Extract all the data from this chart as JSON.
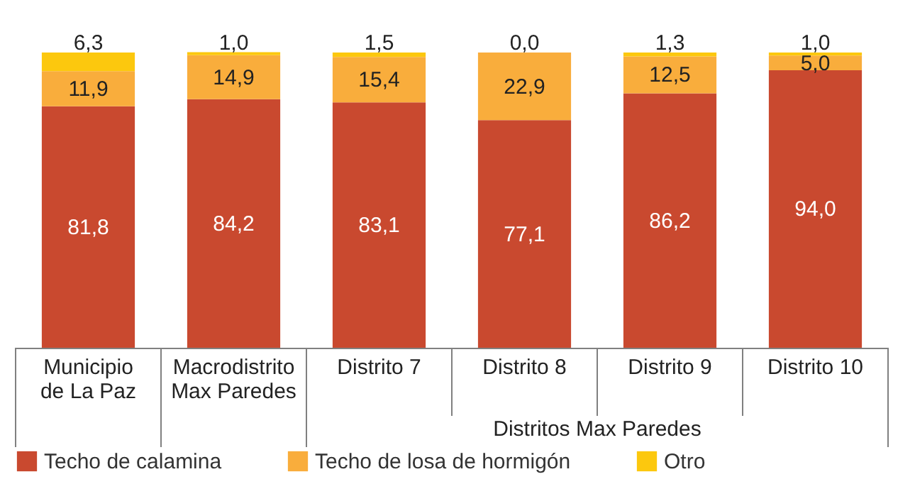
{
  "chart_data": {
    "type": "bar",
    "stacked": true,
    "categories": [
      "Municipio\nde La Paz",
      "Macrodistrito\nMax Paredes",
      "Distrito 7",
      "Distrito 8",
      "Distrito 9",
      "Distrito 10"
    ],
    "series": [
      {
        "name": "Techo de calamina",
        "color": "#c9492f",
        "values": [
          81.8,
          84.2,
          83.1,
          77.1,
          86.2,
          94.0
        ],
        "value_labels": [
          "81,8",
          "84,2",
          "83,1",
          "77,1",
          "86,2",
          "94,0"
        ]
      },
      {
        "name": "Techo de losa de hormigón",
        "color": "#f9ad3c",
        "values": [
          11.9,
          14.9,
          15.4,
          22.9,
          12.5,
          5.0
        ],
        "value_labels": [
          "11,9",
          "14,9",
          "15,4",
          "22,9",
          "12,5",
          "5,0"
        ]
      },
      {
        "name": "Otro",
        "color": "#fcc80e",
        "values": [
          6.3,
          1.0,
          1.5,
          0.0,
          1.3,
          1.0
        ],
        "value_labels": [
          "6,3",
          "1,0",
          "1,5",
          "0,0",
          "1,3",
          "1,0"
        ]
      }
    ],
    "ylim": [
      0,
      100
    ],
    "tick_labels": "x",
    "grid": false,
    "legend": "bottom",
    "annotations": [
      "Distritos Max Paredes"
    ]
  }
}
